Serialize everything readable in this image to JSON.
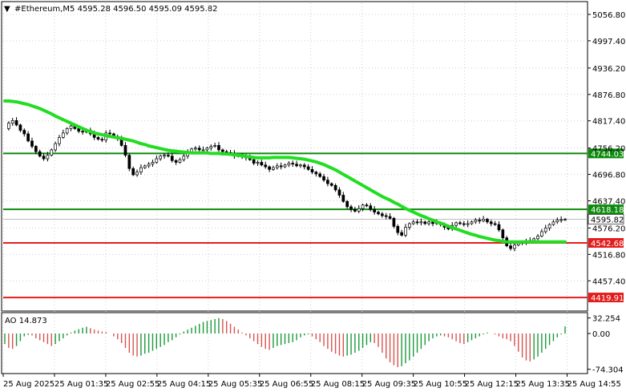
{
  "header": {
    "title": "#Ethereum,M5  4595.28 4596.50 4595.09 4595.82",
    "arrow": "triangle-down-icon"
  },
  "colors": {
    "background": "#ffffff",
    "frame": "#000000",
    "candle": "#000000",
    "ma": "#22dd22",
    "support": "#e21d1d",
    "resistance": "#0b8a0b",
    "ao_up": "#1a9a3a",
    "ao_down": "#d9534f"
  },
  "chart_data": [
    {
      "type": "candlestick",
      "symbol": "#Ethereum",
      "timeframe": "M5",
      "ohlc_current": {
        "open": 4595.28,
        "high": 4596.5,
        "low": 4595.09,
        "close": 4595.82
      },
      "ylim": [
        4393,
        5082
      ],
      "y_ticks": [
        "5056.80",
        "4997.40",
        "4936.20",
        "4876.80",
        "4817.40",
        "4756.20",
        "4696.80",
        "4637.40",
        "4576.20",
        "4516.80",
        "4457.40"
      ],
      "x_ticks": [
        "25 Aug 2025",
        "25 Aug 01:35",
        "25 Aug 02:55",
        "25 Aug 04:15",
        "25 Aug 05:35",
        "25 Aug 06:55",
        "25 Aug 08:15",
        "25 Aug 09:35",
        "25 Aug 10:55",
        "25 Aug 12:15",
        "25 Aug 13:35",
        "25 Aug 14:55"
      ],
      "levels": [
        {
          "value": 4744.03,
          "label": "4744.03",
          "kind": "resistance"
        },
        {
          "value": 4618.18,
          "label": "4618.18",
          "kind": "resistance"
        },
        {
          "value": 4542.68,
          "label": "4542.68",
          "kind": "support"
        },
        {
          "value": 4419.91,
          "label": "4419.91",
          "kind": "support"
        }
      ],
      "current_price": {
        "value": 4595.82,
        "label": "4595.82"
      },
      "close_series": [
        4800,
        4812,
        4818,
        4808,
        4796,
        4788,
        4772,
        4760,
        4748,
        4738,
        4732,
        4740,
        4752,
        4766,
        4780,
        4790,
        4800,
        4806,
        4800,
        4794,
        4792,
        4796,
        4788,
        4780,
        4776,
        4774,
        4790,
        4788,
        4782,
        4778,
        4762,
        4740,
        4710,
        4696,
        4702,
        4712,
        4716,
        4720,
        4724,
        4732,
        4738,
        4740,
        4738,
        4728,
        4724,
        4730,
        4738,
        4746,
        4754,
        4756,
        4752,
        4752,
        4756,
        4760,
        4762,
        4752,
        4748,
        4746,
        4744,
        4738,
        4740,
        4736,
        4734,
        4730,
        4722,
        4724,
        4718,
        4714,
        4708,
        4712,
        4716,
        4714,
        4718,
        4722,
        4720,
        4716,
        4718,
        4714,
        4708,
        4702,
        4698,
        4692,
        4684,
        4676,
        4672,
        4662,
        4650,
        4636,
        4624,
        4618,
        4614,
        4620,
        4628,
        4626,
        4618,
        4612,
        4608,
        4604,
        4602,
        4598,
        4580,
        4566,
        4560,
        4578,
        4586,
        4590,
        4588,
        4590,
        4586,
        4590,
        4586,
        4588,
        4584,
        4578,
        4574,
        4582,
        4588,
        4586,
        4584,
        4586,
        4590,
        4594,
        4592,
        4596,
        4590,
        4586,
        4584,
        4572,
        4554,
        4536,
        4530,
        4538,
        4542,
        4544,
        4546,
        4548,
        4552,
        4558,
        4568,
        4576,
        4584,
        4590,
        4594,
        4595,
        4595.82
      ],
      "ma_series": [
        4862,
        4862,
        4861,
        4860,
        4858,
        4856,
        4854,
        4851,
        4848,
        4845,
        4841,
        4837,
        4833,
        4828,
        4824,
        4820,
        4816,
        4812,
        4808,
        4804,
        4800,
        4796,
        4793,
        4790,
        4788,
        4786,
        4784,
        4782,
        4781,
        4779,
        4778,
        4776,
        4774,
        4772,
        4769,
        4766,
        4764,
        4761,
        4759,
        4757,
        4755,
        4753,
        4751,
        4750,
        4749,
        4748,
        4747,
        4746,
        4745,
        4745,
        4745,
        4745,
        4745,
        4744,
        4744,
        4744,
        4743,
        4743,
        4742,
        4741,
        4740,
        4739,
        4737,
        4736,
        4735,
        4734,
        4734,
        4734,
        4734,
        4735,
        4735,
        4735,
        4735,
        4735,
        4734,
        4733,
        4732,
        4731,
        4729,
        4727,
        4725,
        4722,
        4719,
        4715,
        4711,
        4707,
        4702,
        4697,
        4692,
        4687,
        4682,
        4677,
        4672,
        4667,
        4662,
        4657,
        4652,
        4647,
        4643,
        4639,
        4634,
        4630,
        4625,
        4620,
        4616,
        4612,
        4608,
        4604,
        4601,
        4597,
        4594,
        4590,
        4587,
        4584,
        4580,
        4577,
        4574,
        4571,
        4568,
        4565,
        4562,
        4560,
        4557,
        4555,
        4553,
        4551,
        4549,
        4548,
        4546,
        4545,
        4545,
        4545,
        4545,
        4545,
        4545,
        4545,
        4545,
        4545,
        4545,
        4545,
        4545,
        4545,
        4545,
        4545,
        4545
      ]
    },
    {
      "type": "bar",
      "name": "AO",
      "label": "AO 14.873",
      "ylim": [
        -80,
        40
      ],
      "y_ticks": [
        "32.254",
        "0.00",
        "-74.304"
      ],
      "values": [
        -22,
        -30,
        -32,
        -26,
        -16,
        -6,
        -3,
        -4,
        -10,
        -14,
        -18,
        -22,
        -26,
        -22,
        -16,
        -10,
        -4,
        2,
        6,
        9,
        12,
        14,
        11,
        8,
        6,
        4,
        3,
        0,
        -6,
        -12,
        -20,
        -30,
        -40,
        -46,
        -48,
        -46,
        -42,
        -40,
        -36,
        -32,
        -28,
        -24,
        -18,
        -14,
        -8,
        -2,
        4,
        8,
        12,
        16,
        20,
        24,
        26,
        28,
        30,
        32,
        30,
        26,
        20,
        14,
        8,
        2,
        -4,
        -10,
        -16,
        -22,
        -28,
        -32,
        -34,
        -30,
        -26,
        -24,
        -22,
        -20,
        -18,
        -14,
        -8,
        -4,
        -2,
        -6,
        -12,
        -18,
        -26,
        -32,
        -38,
        -42,
        -46,
        -48,
        -46,
        -44,
        -40,
        -36,
        -30,
        -24,
        -18,
        -20,
        -28,
        -40,
        -52,
        -60,
        -66,
        -70,
        -68,
        -62,
        -56,
        -48,
        -40,
        -32,
        -24,
        -16,
        -10,
        -6,
        -4,
        -6,
        -8,
        -12,
        -16,
        -20,
        -22,
        -18,
        -14,
        -10,
        -6,
        -2,
        2,
        0,
        -2,
        -6,
        -10,
        -12,
        -16,
        -26,
        -38,
        -50,
        -56,
        -58,
        -54,
        -48,
        -40,
        -32,
        -24,
        -16,
        -8,
        -2,
        14.873
      ]
    }
  ]
}
